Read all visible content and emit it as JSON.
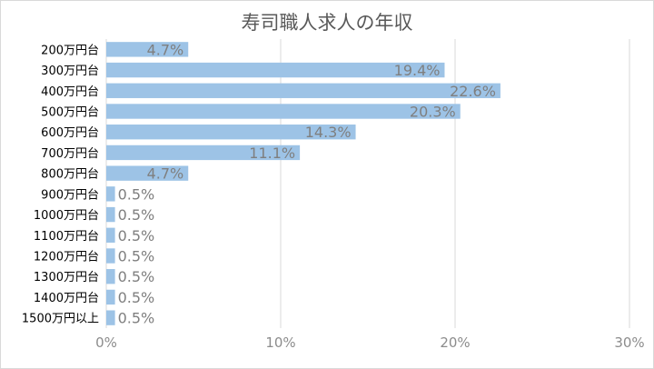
{
  "chart_data": {
    "type": "bar",
    "orientation": "horizontal",
    "title": "寿司職人求人の年収",
    "categories": [
      "200万円台",
      "300万円台",
      "400万円台",
      "500万円台",
      "600万円台",
      "700万円台",
      "800万円台",
      "900万円台",
      "1000万円台",
      "1100万円台",
      "1200万円台",
      "1300万円台",
      "1400万円台",
      "1500万円以上"
    ],
    "values": [
      4.7,
      19.4,
      22.6,
      20.3,
      14.3,
      11.1,
      4.7,
      0.5,
      0.5,
      0.5,
      0.5,
      0.5,
      0.5,
      0.5
    ],
    "data_labels": [
      "4.7%",
      "19.4%",
      "22.6%",
      "20.3%",
      "14.3%",
      "11.1%",
      "4.7%",
      "0.5%",
      "0.5%",
      "0.5%",
      "0.5%",
      "0.5%",
      "0.5%",
      "0.5%"
    ],
    "xlim": [
      0,
      30
    ],
    "xticks": [
      0,
      10,
      20,
      30
    ],
    "xtick_labels": [
      "0%",
      "10%",
      "20%",
      "30%"
    ],
    "grid": "vertical",
    "legend": "none",
    "bar_color": "#9dc3e6",
    "grid_color": "#d9d9d9",
    "label_color": "#7f7f7f"
  }
}
